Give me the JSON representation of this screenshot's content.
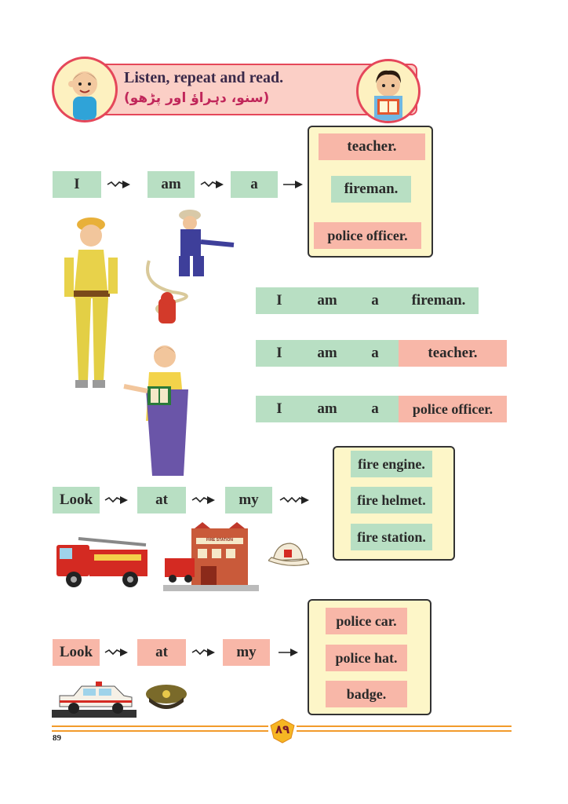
{
  "header": {
    "title": "Listen, repeat and read.",
    "urdu_subtitle": "(سنو، دہراؤ اور پڑھو)"
  },
  "section1": {
    "words": [
      "I",
      "am",
      "a"
    ],
    "options": [
      "teacher.",
      "fireman.",
      "police officer."
    ]
  },
  "sentences": [
    {
      "w1": "I",
      "w2": "am",
      "w3": "a",
      "w4": "fireman."
    },
    {
      "w1": "I",
      "w2": "am",
      "w3": "a",
      "w4": "teacher."
    },
    {
      "w1": "I",
      "w2": "am",
      "w3": "a",
      "w4": "police officer."
    }
  ],
  "section2": {
    "words": [
      "Look",
      "at",
      "my"
    ],
    "options": [
      "fire engine.",
      "fire helmet.",
      "fire station."
    ],
    "station_sign": "FIRE STATION"
  },
  "section3": {
    "words": [
      "Look",
      "at",
      "my"
    ],
    "options": [
      "police car.",
      "police hat.",
      "badge."
    ]
  },
  "footer": {
    "page_number": "89",
    "urdu_page_number": "۸۹"
  },
  "colors": {
    "green_box": "#b8dfc3",
    "pink_box": "#f8b7a8",
    "banner_border": "#e5475a",
    "footer_line": "#f29b2b",
    "wavy_bg": "#fdf6c8"
  }
}
